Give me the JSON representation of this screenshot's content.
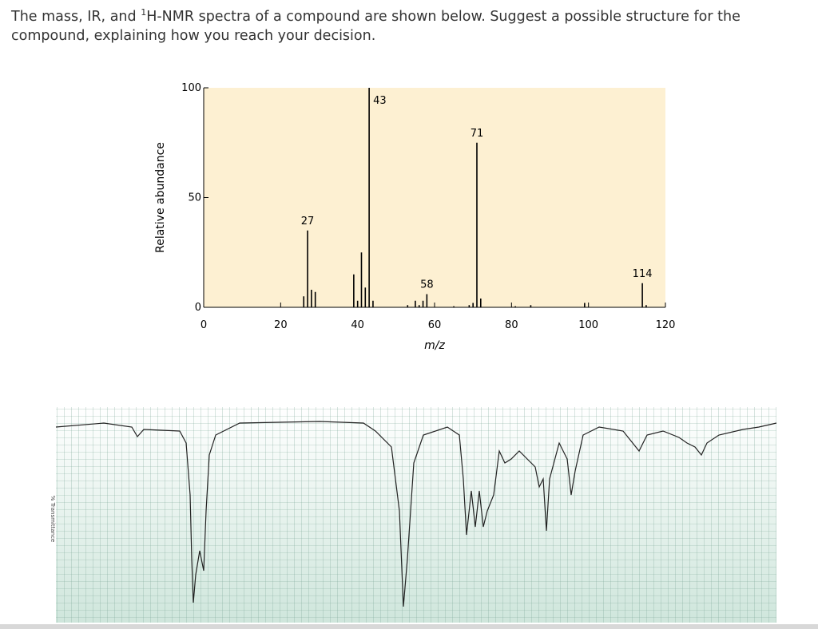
{
  "question": {
    "before": "The mass, IR, and ",
    "superscript": "1",
    "after": "H-NMR spectra of a compound are shown below. Suggest a possible structure for the compound, explaining how you reach your decision."
  },
  "chart_data": {
    "type": "stem",
    "xlabel": "m/z",
    "ylabel": "Relative abundance",
    "color": "#000000",
    "background": "#fdf0d2",
    "x": [
      26,
      27,
      28,
      29,
      39,
      40,
      41,
      42,
      43,
      44,
      53,
      55,
      56,
      57,
      58,
      65,
      69,
      70,
      71,
      72,
      81,
      85,
      99,
      114,
      115
    ],
    "values": [
      5,
      35,
      8,
      7,
      15,
      3,
      25,
      9,
      100,
      3,
      1,
      3,
      1,
      3,
      6,
      0.5,
      1,
      2,
      75,
      4,
      0.5,
      1,
      2,
      11,
      1
    ],
    "annotations": [
      27,
      43,
      58,
      71,
      114
    ],
    "xlim": [
      0,
      120
    ],
    "xticks": [
      0,
      20,
      40,
      60,
      80,
      100,
      120
    ],
    "ylim": [
      0,
      100
    ],
    "yticks": [
      0,
      50,
      100
    ]
  },
  "ir": {
    "ylabel": "% Transmittance"
  }
}
